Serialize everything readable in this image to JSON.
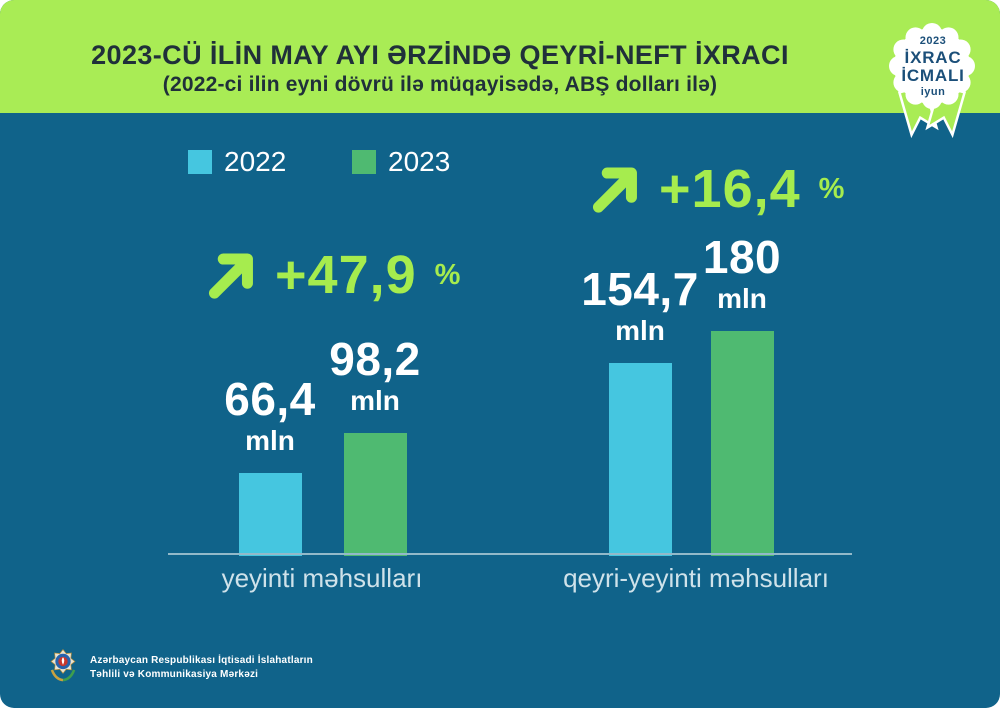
{
  "header": {
    "title": "2023-CÜ İLİN MAY AYI ƏRZİNDƏ QEYRİ-NEFT İXRACI",
    "subtitle": "(2022-ci ilin eyni dövrü ilə müqayisədə, ABŞ dolları ilə)"
  },
  "badge": {
    "year": "2023",
    "title_line1": "İXRAC",
    "title_line2": "İCMALI",
    "month": "iyun"
  },
  "chart_data": {
    "type": "bar",
    "title": "2023-cü ilin may ayı ərzində qeyri-neft ixracı (2022-ci ilin eyni dövrü ilə müqayisədə, ABŞ dolları ilə)",
    "unit": "mln",
    "categories": [
      "yeyinti məhsulları",
      "qeyri-yeyinti məhsulları"
    ],
    "series": [
      {
        "name": "2022",
        "color": "#45c6e0",
        "values": [
          66.4,
          154.7
        ],
        "value_labels": [
          "66,4",
          "154,7"
        ]
      },
      {
        "name": "2023",
        "color": "#4fba71",
        "values": [
          98.2,
          180
        ],
        "value_labels": [
          "98,2",
          "180"
        ]
      }
    ],
    "growth": [
      {
        "label": "+47,9",
        "suffix": "%"
      },
      {
        "label": "+16,4",
        "suffix": "%"
      }
    ],
    "ylim": [
      0,
      240
    ],
    "grid": false,
    "legend_position": "top-left"
  },
  "footer": {
    "org_line1": "Azərbaycan Respublikası İqtisadi İslahatların",
    "org_line2": "Təhlili və Kommunikasiya Mərkəzi"
  },
  "colors": {
    "header_bg": "#a9ec55",
    "body_bg": "#10638a",
    "accent": "#a6ec4e",
    "title_text": "#20303a",
    "badge_text": "#1b4f79",
    "category_label": "#cfe2ea",
    "axis_line": "#93b9c9",
    "value_text": "#ffffff"
  }
}
